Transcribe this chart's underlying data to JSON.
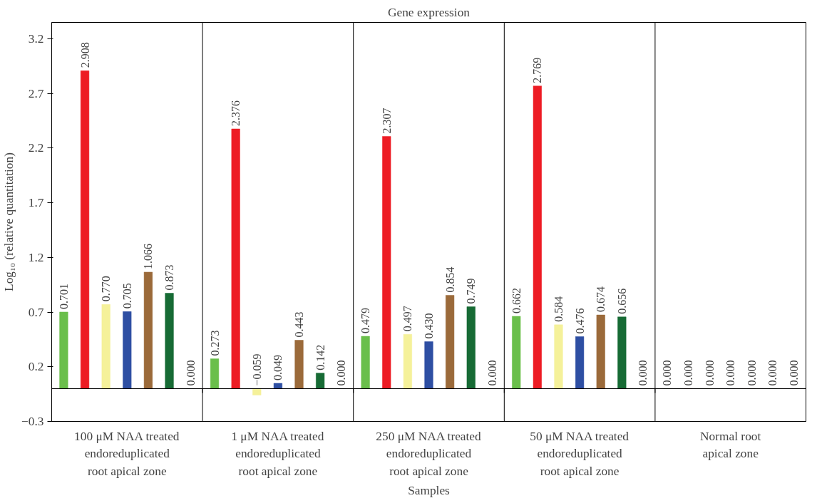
{
  "chart_data": {
    "type": "bar",
    "title": "Gene expression",
    "xlabel": "Samples",
    "ylabel": "Log₁₀ (relative quantitation)",
    "categories": [
      "100 μM NAA treated\nendoreduplicated\nroot apical zone",
      "1 μM NAA treated\nendoreduplicated\nroot apical zone",
      "250 μM NAA treated\nendoreduplicated\nroot apical zone",
      "50 μM NAA treated\nendoreduplicated\nroot apical zone",
      "Normal root\napical zone"
    ],
    "series": [
      {
        "color": "#6abf4b",
        "values": [
          0.701,
          0.273,
          0.479,
          0.662,
          0.0
        ],
        "value_labels": [
          "0.701",
          "0.273",
          "0.479",
          "0.662",
          "0.000"
        ]
      },
      {
        "color": "#ed1c24",
        "values": [
          2.908,
          2.376,
          2.307,
          2.769,
          0.0
        ],
        "value_labels": [
          "2.908",
          "2.376",
          "2.307",
          "2.769",
          "0.000"
        ]
      },
      {
        "color": "#f5f19a",
        "values": [
          0.77,
          -0.059,
          0.497,
          0.584,
          0.0
        ],
        "value_labels": [
          "0.770",
          "−0.059",
          "0.497",
          "0.584",
          "0.000"
        ]
      },
      {
        "color": "#2e4fa3",
        "values": [
          0.705,
          0.049,
          0.43,
          0.476,
          0.0
        ],
        "value_labels": [
          "0.705",
          "0.049",
          "0.430",
          "0.476",
          "0.000"
        ]
      },
      {
        "color": "#9b6a3a",
        "values": [
          1.066,
          0.443,
          0.854,
          0.674,
          0.0
        ],
        "value_labels": [
          "1.066",
          "0.443",
          "0.854",
          "0.674",
          "0.000"
        ]
      },
      {
        "color": "#176b35",
        "values": [
          0.873,
          0.142,
          0.749,
          0.656,
          0.0
        ],
        "value_labels": [
          "0.873",
          "0.142",
          "0.749",
          "0.656",
          "0.000"
        ]
      },
      {
        "color": "#7f7f7f",
        "values": [
          0.0,
          0.0,
          0.0,
          0.0,
          0.0
        ],
        "value_labels": [
          "0.000",
          "0.000",
          "0.000",
          "0.000",
          "0.000"
        ]
      }
    ],
    "ylim": [
      -0.3,
      3.35
    ],
    "yticks": [
      {
        "value": -0.3,
        "label": "−0.3"
      },
      0.2,
      0.7,
      1.2,
      1.7,
      2.2,
      2.7,
      3.2
    ],
    "grid": false
  }
}
